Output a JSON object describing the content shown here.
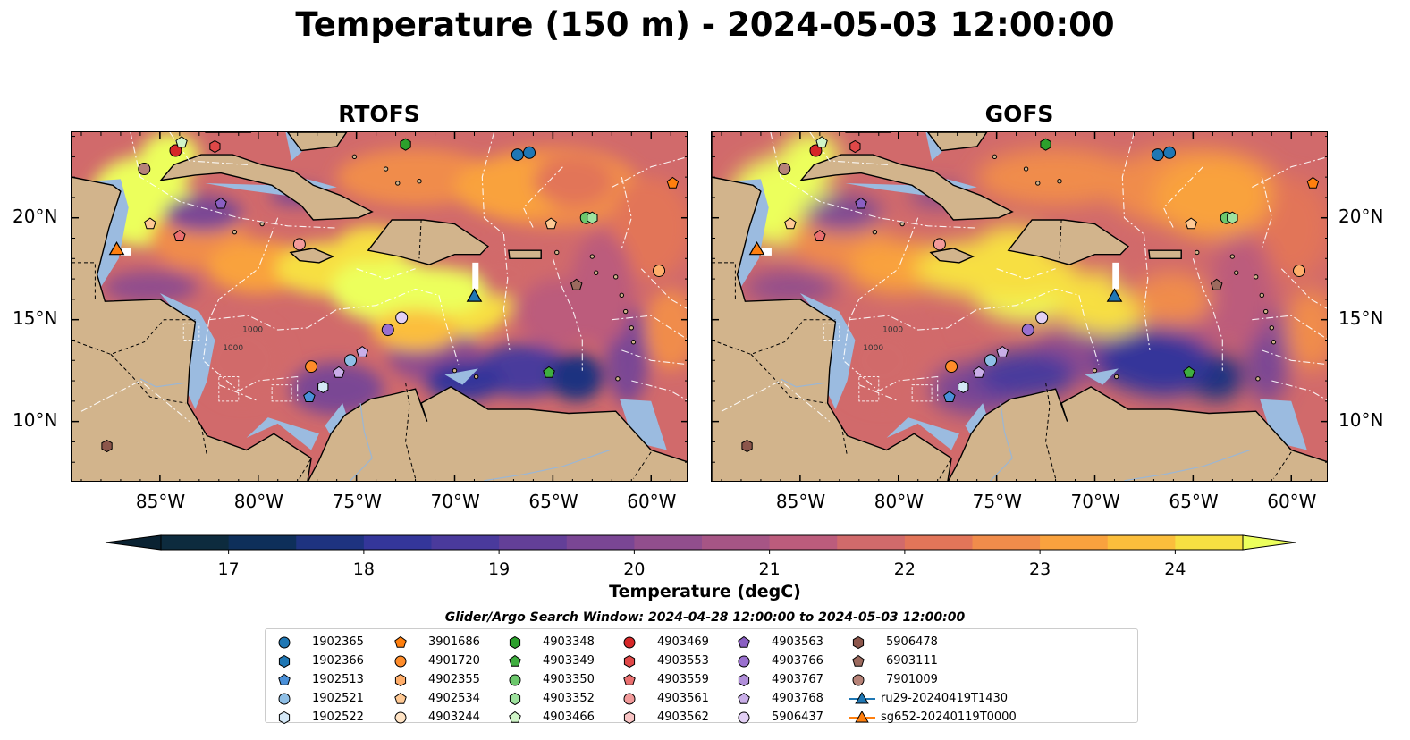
{
  "title": "Temperature (150 m) - 2024-05-03 12:00:00",
  "panels": [
    {
      "id": "rtofs",
      "title": "RTOFS"
    },
    {
      "id": "gofs",
      "title": "GOFS"
    }
  ],
  "map_extent": {
    "lon": [
      -89.5,
      -58.1
    ],
    "lat": [
      7.0,
      24.2
    ]
  },
  "lon_ticks": [
    "85°W",
    "80°W",
    "75°W",
    "70°W",
    "65°W",
    "60°W"
  ],
  "lon_tick_values": [
    -85,
    -80,
    -75,
    -70,
    -65,
    -60
  ],
  "lat_ticks": [
    "20°N",
    "15°N",
    "10°N"
  ],
  "lat_tick_values": [
    20,
    15,
    10
  ],
  "colorbar": {
    "label": "Temperature (degC)",
    "min": 16.5,
    "max": 24.5,
    "step": 0.5,
    "tick_values": [
      "17",
      "18",
      "19",
      "20",
      "21",
      "22",
      "23",
      "24"
    ],
    "colors": [
      "#0d2b3e",
      "#0e2f5a",
      "#1e3380",
      "#34369a",
      "#4a3a9c",
      "#633f98",
      "#7a4694",
      "#914e8d",
      "#a65585",
      "#bc5c7c",
      "#d16a6b",
      "#e27559",
      "#f08c4b",
      "#f9a23e",
      "#fbbe3c",
      "#f7df42",
      "#ecff5c"
    ],
    "extend_low_color": "#0a2232",
    "extend_high_color": "#ecff5c"
  },
  "land_color": "#d2b48c",
  "shelf_color": "#9bbbe0",
  "search_window": "Glider/Argo Search Window: 2024-04-28 12:00:00 to 2024-05-03 12:00:00",
  "legend": [
    {
      "label": "1902365",
      "marker": "circle",
      "color": "#1f77b4"
    },
    {
      "label": "1902366",
      "marker": "hexagon",
      "color": "#1f77b4"
    },
    {
      "label": "1902513",
      "marker": "pentagon",
      "color": "#4a90d9"
    },
    {
      "label": "1902521",
      "marker": "circle",
      "color": "#8fbfe6"
    },
    {
      "label": "1902522",
      "marker": "hexagon",
      "color": "#d4e8f7"
    },
    {
      "label": "3901686",
      "marker": "pentagon",
      "color": "#ff7f0e"
    },
    {
      "label": "4901720",
      "marker": "circle",
      "color": "#ff8c2a"
    },
    {
      "label": "4902355",
      "marker": "hexagon",
      "color": "#ffae6b"
    },
    {
      "label": "4902534",
      "marker": "pentagon",
      "color": "#ffc994"
    },
    {
      "label": "4903244",
      "marker": "circle",
      "color": "#ffe3c4"
    },
    {
      "label": "4903348",
      "marker": "hexagon",
      "color": "#2ca02c"
    },
    {
      "label": "4903349",
      "marker": "pentagon",
      "color": "#3fae3f"
    },
    {
      "label": "4903350",
      "marker": "circle",
      "color": "#6cc86c"
    },
    {
      "label": "4903352",
      "marker": "hexagon",
      "color": "#9ee29e"
    },
    {
      "label": "4903466",
      "marker": "pentagon",
      "color": "#d0f5c8"
    },
    {
      "label": "4903469",
      "marker": "circle",
      "color": "#d62728"
    },
    {
      "label": "4903553",
      "marker": "hexagon",
      "color": "#e04848"
    },
    {
      "label": "4903559",
      "marker": "pentagon",
      "color": "#ea7070"
    },
    {
      "label": "4903561",
      "marker": "circle",
      "color": "#f29a9a"
    },
    {
      "label": "4903562",
      "marker": "hexagon",
      "color": "#f8c4c4"
    },
    {
      "label": "4903563",
      "marker": "pentagon",
      "color": "#8a5fc2"
    },
    {
      "label": "4903766",
      "marker": "circle",
      "color": "#9a70cf"
    },
    {
      "label": "4903767",
      "marker": "hexagon",
      "color": "#b08ed9"
    },
    {
      "label": "4903768",
      "marker": "pentagon",
      "color": "#c9aee8"
    },
    {
      "label": "5906437",
      "marker": "circle",
      "color": "#e3d0f5"
    },
    {
      "label": "5906478",
      "marker": "hexagon",
      "color": "#8c564b"
    },
    {
      "label": "6903111",
      "marker": "pentagon",
      "color": "#9c6a5e"
    },
    {
      "label": "7901009",
      "marker": "circle",
      "color": "#b78378"
    },
    {
      "label": "ru29-20240419T1430",
      "marker": "triangle-line",
      "color": "#1f77b4"
    },
    {
      "label": "sg652-20240119T0000",
      "marker": "triangle-line",
      "color": "#ff7f0e"
    }
  ],
  "gliders": [
    {
      "id": "ru29-20240419T1430",
      "lon": -69.0,
      "lat": 16.1,
      "color": "#1f77b4"
    },
    {
      "id": "sg652-20240119T0000",
      "lon": -87.2,
      "lat": 18.4,
      "color": "#ff7f0e"
    }
  ],
  "floats": [
    {
      "lon": -66.8,
      "lat": 23.1,
      "marker": "circle",
      "color": "#1f77b4"
    },
    {
      "lon": -66.2,
      "lat": 23.2,
      "marker": "circle",
      "color": "#1f77b4"
    },
    {
      "lon": -84.2,
      "lat": 23.3,
      "marker": "circle",
      "color": "#d62728"
    },
    {
      "lon": -83.9,
      "lat": 23.7,
      "marker": "pentagon",
      "color": "#d0f5c8"
    },
    {
      "lon": -82.2,
      "lat": 23.5,
      "marker": "hexagon",
      "color": "#e04848"
    },
    {
      "lon": -85.8,
      "lat": 22.4,
      "marker": "circle",
      "color": "#b78378"
    },
    {
      "lon": -72.5,
      "lat": 23.6,
      "marker": "hexagon",
      "color": "#2ca02c"
    },
    {
      "lon": -58.9,
      "lat": 21.7,
      "marker": "pentagon",
      "color": "#ff7f0e"
    },
    {
      "lon": -81.9,
      "lat": 20.7,
      "marker": "pentagon",
      "color": "#8a5fc2"
    },
    {
      "lon": -85.5,
      "lat": 19.7,
      "marker": "pentagon",
      "color": "#ffc994"
    },
    {
      "lon": -84.0,
      "lat": 19.1,
      "marker": "pentagon",
      "color": "#ea7070"
    },
    {
      "lon": -77.9,
      "lat": 18.7,
      "marker": "circle",
      "color": "#f29a9a"
    },
    {
      "lon": -65.1,
      "lat": 19.7,
      "marker": "pentagon",
      "color": "#ffc994"
    },
    {
      "lon": -63.3,
      "lat": 20.0,
      "marker": "circle",
      "color": "#6cc86c"
    },
    {
      "lon": -63.0,
      "lat": 20.0,
      "marker": "hexagon",
      "color": "#9ee29e"
    },
    {
      "lon": -59.6,
      "lat": 17.4,
      "marker": "circle",
      "color": "#ffae6b"
    },
    {
      "lon": -63.8,
      "lat": 16.7,
      "marker": "pentagon",
      "color": "#9c6a5e"
    },
    {
      "lon": -72.7,
      "lat": 15.1,
      "marker": "circle",
      "color": "#e3d0f5"
    },
    {
      "lon": -73.4,
      "lat": 14.5,
      "marker": "circle",
      "color": "#9a70cf"
    },
    {
      "lon": -74.7,
      "lat": 13.4,
      "marker": "pentagon",
      "color": "#c9aee8"
    },
    {
      "lon": -75.3,
      "lat": 13.0,
      "marker": "circle",
      "color": "#8fbfe6"
    },
    {
      "lon": -75.9,
      "lat": 12.4,
      "marker": "pentagon",
      "color": "#c9aee8"
    },
    {
      "lon": -77.3,
      "lat": 12.7,
      "marker": "circle",
      "color": "#ff8c2a"
    },
    {
      "lon": -76.7,
      "lat": 11.7,
      "marker": "hexagon",
      "color": "#d4e8f7"
    },
    {
      "lon": -77.4,
      "lat": 11.2,
      "marker": "pentagon",
      "color": "#4a90d9"
    },
    {
      "lon": -65.2,
      "lat": 12.4,
      "marker": "pentagon",
      "color": "#3fae3f"
    },
    {
      "lon": -87.7,
      "lat": 8.8,
      "marker": "hexagon",
      "color": "#8c564b"
    }
  ]
}
